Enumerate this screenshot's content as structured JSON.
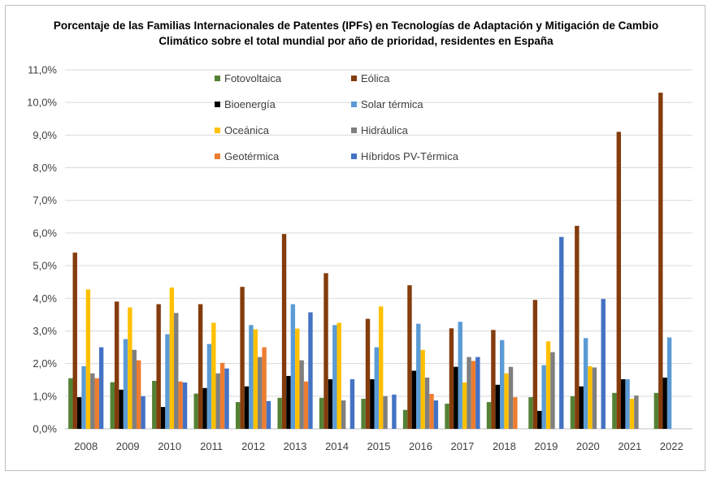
{
  "title_line1": "Porcentaje de las Familias Internacionales de Patentes (IPFs) en Tecnologías de Adaptación y Mitigación de Cambio",
  "title_line2": "Climático sobre el total mundial por año de prioridad, residentes en España",
  "chart_data": {
    "type": "bar",
    "title": "Porcentaje de las Familias Internacionales de Patentes (IPFs) en Tecnologías de Adaptación y Mitigación de Cambio Climático sobre el total mundial por año de prioridad, residentes en España",
    "xlabel": "",
    "ylabel": "",
    "ylim": [
      0,
      11
    ],
    "yticks": [
      "0,0%",
      "1,0%",
      "2,0%",
      "3,0%",
      "4,0%",
      "5,0%",
      "6,0%",
      "7,0%",
      "8,0%",
      "9,0%",
      "10,0%",
      "11,0%"
    ],
    "grid": true,
    "legend_position": "top",
    "categories": [
      "2008",
      "2009",
      "2010",
      "2011",
      "2012",
      "2013",
      "2014",
      "2015",
      "2016",
      "2017",
      "2018",
      "2019",
      "2020",
      "2021",
      "2022"
    ],
    "series": [
      {
        "name": "Fotovoltaica",
        "color": "#548235",
        "values": [
          1.55,
          1.43,
          1.47,
          1.08,
          0.82,
          0.95,
          0.95,
          0.92,
          0.58,
          0.77,
          0.82,
          0.97,
          1.0,
          1.1,
          1.1
        ]
      },
      {
        "name": "Eólica",
        "color": "#843c0c",
        "values": [
          5.4,
          3.9,
          3.82,
          3.82,
          4.35,
          5.97,
          4.77,
          3.37,
          4.4,
          3.08,
          3.03,
          3.95,
          6.22,
          9.1,
          10.3
        ]
      },
      {
        "name": "Bioenergía",
        "color": "#000000",
        "values": [
          0.97,
          1.2,
          0.67,
          1.25,
          1.3,
          1.62,
          1.52,
          1.52,
          1.78,
          1.9,
          1.35,
          0.55,
          1.3,
          1.52,
          1.57
        ]
      },
      {
        "name": "Solar térmica",
        "color": "#5b9bd5",
        "values": [
          1.92,
          2.75,
          2.9,
          2.6,
          3.18,
          3.82,
          3.18,
          2.5,
          3.22,
          3.28,
          2.72,
          1.95,
          2.78,
          1.52,
          2.8
        ]
      },
      {
        "name": "Oceánica",
        "color": "#ffc000",
        "values": [
          4.27,
          3.72,
          4.33,
          3.25,
          3.05,
          3.07,
          3.25,
          3.75,
          2.42,
          1.42,
          1.7,
          2.68,
          1.92,
          0.92,
          null
        ]
      },
      {
        "name": "Hidráulica",
        "color": "#7f7f7f",
        "values": [
          1.7,
          2.42,
          3.55,
          1.7,
          2.2,
          2.1,
          0.87,
          1.0,
          1.57,
          2.2,
          1.9,
          2.35,
          1.88,
          1.02,
          null
        ]
      },
      {
        "name": "Geotérmica",
        "color": "#ed7d31",
        "values": [
          1.55,
          2.1,
          1.45,
          2.02,
          2.5,
          1.45,
          null,
          null,
          1.07,
          2.08,
          0.97,
          null,
          null,
          null,
          null
        ]
      },
      {
        "name": "Híbridos PV-Térmica",
        "color": "#4472c4",
        "values": [
          2.5,
          1.0,
          1.42,
          1.85,
          0.85,
          3.57,
          1.52,
          1.05,
          0.87,
          2.2,
          null,
          5.88,
          3.98,
          null,
          null
        ]
      }
    ]
  }
}
